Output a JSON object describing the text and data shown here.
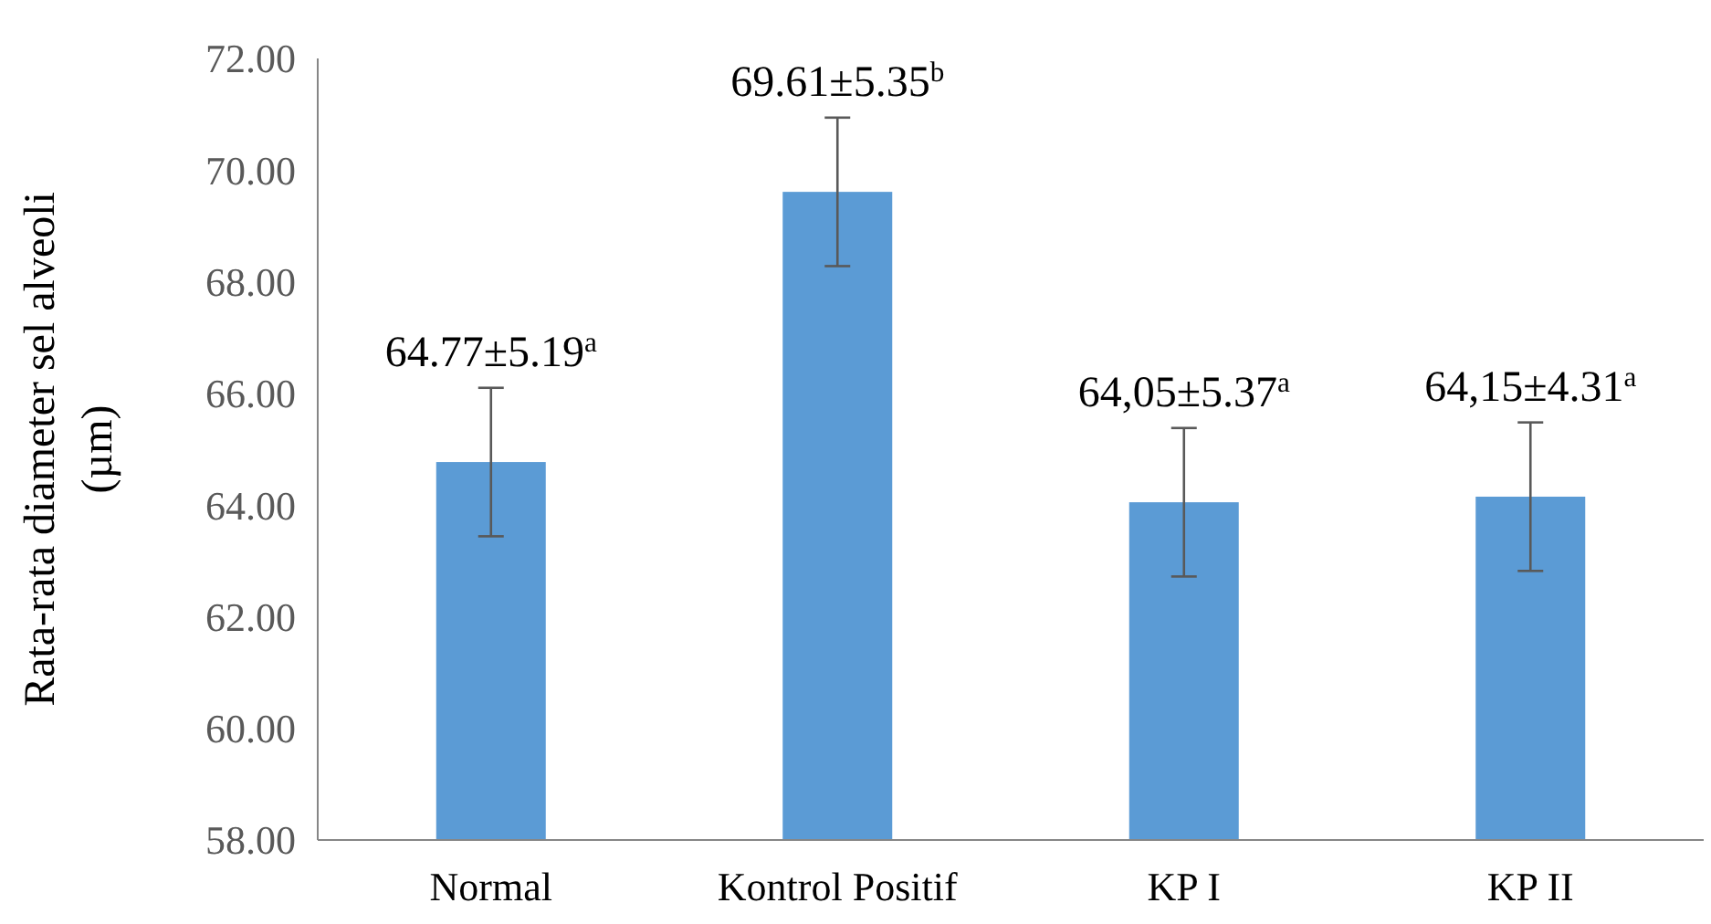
{
  "chart_data": {
    "type": "bar",
    "ylabel": "Rata-rata diameter sel alveoli (µm)",
    "categories": [
      "Normal",
      "Kontrol Positif",
      "KP I",
      "KP II"
    ],
    "values": [
      64.77,
      69.61,
      64.05,
      64.15
    ],
    "errors": [
      1.33,
      1.33,
      1.33,
      1.33
    ],
    "value_labels": [
      "64.77±5.19$^{a}$",
      "69.61±5.35$^{b}$",
      "64,05±5.37$^{a}$",
      "64,15±4.31$^{a}$"
    ],
    "color": "#5b9bd5",
    "ylim": [
      58,
      72
    ],
    "yticks": [
      {
        "value": 58,
        "label": "58.00"
      },
      {
        "value": 60,
        "label": "60.00"
      },
      {
        "value": 62,
        "label": "62.00"
      },
      {
        "value": 64,
        "label": "64.00"
      },
      {
        "value": 66,
        "label": "66.00"
      },
      {
        "value": 68,
        "label": "68.00"
      },
      {
        "value": 70,
        "label": "70.00"
      },
      {
        "value": 72,
        "label": "72.00"
      }
    ],
    "grid": false
  }
}
